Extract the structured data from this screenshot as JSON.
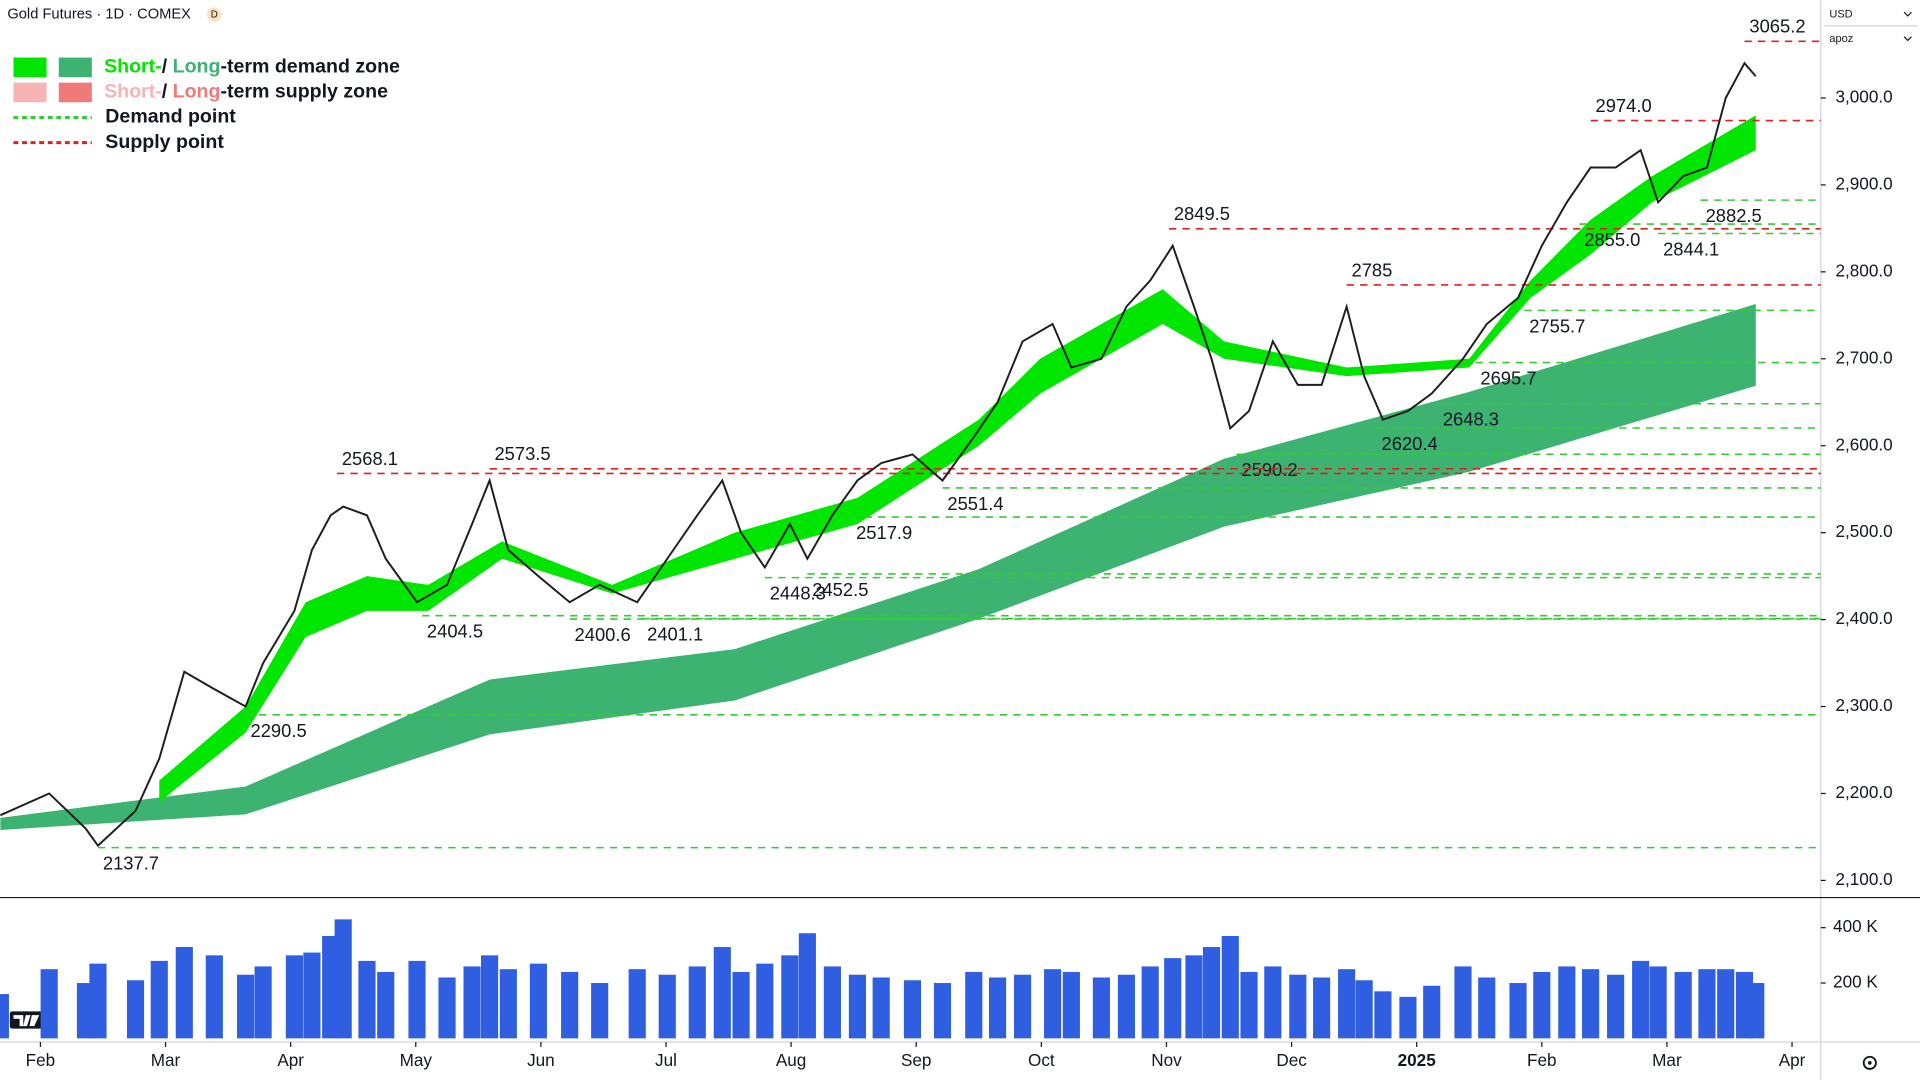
{
  "header": {
    "title": "Gold Futures · 1D · COMEX",
    "badge": "D",
    "currency": "USD",
    "mode": "apoz"
  },
  "chart_data": [
    {
      "type": "line",
      "xlim": [
        0.677,
        15.23
      ],
      "ylim": [
        2081.7,
        3112.7
      ],
      "xticks": [
        {
          "value": 1,
          "label": "Feb"
        },
        {
          "value": 2,
          "label": "Mar"
        },
        {
          "value": 3,
          "label": "Apr"
        },
        {
          "value": 4,
          "label": "May"
        },
        {
          "value": 5,
          "label": "Jun"
        },
        {
          "value": 6,
          "label": "Jul"
        },
        {
          "value": 7,
          "label": "Aug"
        },
        {
          "value": 8,
          "label": "Sep"
        },
        {
          "value": 9,
          "label": "Oct"
        },
        {
          "value": 10,
          "label": "Nov"
        },
        {
          "value": 11,
          "label": "Dec"
        },
        {
          "value": 12,
          "label": "2025"
        },
        {
          "value": 13,
          "label": "Feb"
        },
        {
          "value": 14,
          "label": "Mar"
        },
        {
          "value": 15,
          "label": "Apr"
        }
      ],
      "yticks": [
        {
          "value": 2100,
          "label": "2,100.0"
        },
        {
          "value": 2200,
          "label": "2,200.0"
        },
        {
          "value": 2300,
          "label": "2,300.0"
        },
        {
          "value": 2400,
          "label": "2,400.0"
        },
        {
          "value": 2500,
          "label": "2,500.0"
        },
        {
          "value": 2600,
          "label": "2,600.0"
        },
        {
          "value": 2700,
          "label": "2,700.0"
        },
        {
          "value": 2800,
          "label": "2,800.0"
        },
        {
          "value": 2900,
          "label": "2,900.0"
        },
        {
          "value": 3000,
          "label": "3,000.0"
        }
      ],
      "legend": [
        {
          "parts": [
            "Short-",
            "/ ",
            "Long",
            "-term demand zone"
          ],
          "colors": [
            "#00e600",
            "#3cb371"
          ]
        },
        {
          "parts": [
            "Short-",
            "/ ",
            "Long",
            "-term supply zone"
          ],
          "colors": [
            "#f8b4b4",
            "#f07a7a"
          ]
        },
        {
          "label": "Demand point",
          "color": "#33cc33"
        },
        {
          "label": "Supply point",
          "color": "#e02020"
        }
      ],
      "price": {
        "color": "#1e1e1e",
        "x": [
          0.68,
          1.07,
          1.36,
          1.46,
          1.76,
          1.95,
          2.15,
          2.39,
          2.64,
          2.78,
          3.03,
          3.17,
          3.32,
          3.42,
          3.61,
          3.76,
          4.01,
          4.25,
          4.45,
          4.59,
          4.74,
          4.98,
          5.23,
          5.47,
          5.77,
          6.01,
          6.25,
          6.45,
          6.6,
          6.79,
          6.99,
          7.13,
          7.33,
          7.53,
          7.72,
          7.97,
          8.21,
          8.46,
          8.65,
          8.85,
          9.09,
          9.24,
          9.48,
          9.68,
          9.87,
          10.05,
          10.22,
          10.36,
          10.51,
          10.66,
          10.85,
          11.05,
          11.24,
          11.44,
          11.58,
          11.73,
          11.93,
          12.12,
          12.37,
          12.56,
          12.81,
          13.0,
          13.2,
          13.39,
          13.59,
          13.79,
          13.93,
          14.13,
          14.32,
          14.47,
          14.62,
          14.71
        ],
        "values": [
          2175,
          2200,
          2160,
          2140,
          2180,
          2240,
          2340,
          2320,
          2300,
          2350,
          2410,
          2480,
          2520,
          2530,
          2520,
          2470,
          2420,
          2440,
          2510,
          2560,
          2480,
          2450,
          2420,
          2440,
          2420,
          2470,
          2520,
          2560,
          2500,
          2460,
          2510,
          2470,
          2520,
          2560,
          2580,
          2590,
          2560,
          2610,
          2650,
          2720,
          2740,
          2690,
          2700,
          2760,
          2790,
          2830,
          2760,
          2700,
          2620,
          2640,
          2720,
          2670,
          2670,
          2760,
          2680,
          2630,
          2640,
          2660,
          2700,
          2740,
          2770,
          2830,
          2880,
          2920,
          2920,
          2940,
          2880,
          2910,
          2920,
          3000,
          3040,
          3025
        ]
      },
      "short_zone": {
        "color": "#00e600",
        "x": [
          1.95,
          2.64,
          3.12,
          3.61,
          4.1,
          4.69,
          5.57,
          6.55,
          7.53,
          8.5,
          8.99,
          9.97,
          10.46,
          11.44,
          12.42,
          12.91,
          13.39,
          13.88,
          14.71
        ],
        "lower": [
          2190,
          2270,
          2380,
          2410,
          2410,
          2470,
          2430,
          2470,
          2510,
          2600,
          2660,
          2740,
          2700,
          2680,
          2690,
          2770,
          2820,
          2880,
          2940
        ],
        "upper": [
          2215,
          2300,
          2420,
          2450,
          2440,
          2490,
          2440,
          2500,
          2540,
          2630,
          2700,
          2780,
          2720,
          2690,
          2700,
          2790,
          2860,
          2910,
          2980
        ]
      },
      "long_zone": {
        "color": "#3cb371",
        "x": [
          0.68,
          2.64,
          4.59,
          6.55,
          8.5,
          10.46,
          12.42,
          14.71
        ],
        "lower": [
          2158,
          2176,
          2268,
          2307,
          2401,
          2507,
          2570,
          2669
        ],
        "upper": [
          2172,
          2208,
          2331,
          2366,
          2458,
          2585,
          2662,
          2763
        ]
      },
      "demand_points": {
        "color": "#33cc33",
        "x": [
          1.46,
          2.64,
          4.05,
          5.23,
          5.81,
          6.79,
          7.13,
          7.48,
          8.21,
          10.56,
          11.68,
          12.17,
          12.47,
          12.86,
          13.93,
          13.3,
          14.27
        ],
        "values": [
          2137.7,
          2290.5,
          2404.5,
          2400.6,
          2401.1,
          2448.3,
          2452.5,
          2517.9,
          2551.4,
          2590.2,
          2620.4,
          2648.3,
          2695.7,
          2755.7,
          2844.1,
          2855,
          2882.5
        ],
        "value_labels": [
          "2137.7",
          "2290.5",
          "2404.5",
          "2400.6",
          "2401.1",
          "2448.3",
          "2452.5",
          "2517.9",
          "2551.4",
          "2590.2",
          "2620.4",
          "2648.3",
          "2695.7",
          "2755.7",
          "2844.1",
          "2855.0",
          "2882.5"
        ]
      },
      "supply_points": {
        "color": "#e02020",
        "x": [
          3.37,
          4.59,
          10.02,
          11.44,
          13.39,
          14.62
        ],
        "values": [
          2568.1,
          2573.5,
          2849.5,
          2785,
          2974,
          3065.2
        ],
        "value_labels": [
          "2568.1",
          "2573.5",
          "2849.5",
          "2785",
          "2974.0",
          "3065.2"
        ]
      }
    },
    {
      "type": "bar",
      "color": "#2f5fe0",
      "ylim": [
        0,
        500000
      ],
      "yticks": [
        {
          "value": 200000,
          "label": "200 K"
        },
        {
          "value": 400000,
          "label": "400 K"
        }
      ],
      "x": [
        0.68,
        1.07,
        1.36,
        1.46,
        1.76,
        1.95,
        2.15,
        2.39,
        2.64,
        2.78,
        3.03,
        3.17,
        3.32,
        3.42,
        3.61,
        3.76,
        4.01,
        4.25,
        4.45,
        4.59,
        4.74,
        4.98,
        5.23,
        5.47,
        5.77,
        6.01,
        6.25,
        6.45,
        6.6,
        6.79,
        6.99,
        7.13,
        7.33,
        7.53,
        7.72,
        7.97,
        8.21,
        8.46,
        8.65,
        8.85,
        9.09,
        9.24,
        9.48,
        9.68,
        9.87,
        10.05,
        10.22,
        10.36,
        10.51,
        10.66,
        10.85,
        11.05,
        11.24,
        11.44,
        11.58,
        11.73,
        11.93,
        12.12,
        12.37,
        12.56,
        12.81,
        13.0,
        13.2,
        13.39,
        13.59,
        13.79,
        13.93,
        14.13,
        14.32,
        14.47,
        14.62,
        14.71
      ],
      "values": [
        160000,
        250000,
        200000,
        270000,
        210000,
        280000,
        330000,
        300000,
        230000,
        260000,
        300000,
        310000,
        370000,
        430000,
        280000,
        240000,
        280000,
        220000,
        260000,
        300000,
        250000,
        270000,
        240000,
        200000,
        250000,
        230000,
        260000,
        330000,
        240000,
        270000,
        300000,
        380000,
        260000,
        230000,
        220000,
        210000,
        200000,
        240000,
        220000,
        230000,
        250000,
        240000,
        220000,
        230000,
        260000,
        290000,
        300000,
        330000,
        370000,
        240000,
        260000,
        230000,
        220000,
        250000,
        210000,
        170000,
        150000,
        190000,
        260000,
        220000,
        200000,
        240000,
        260000,
        250000,
        230000,
        280000,
        260000,
        240000,
        250000,
        250000,
        240000,
        200000
      ]
    }
  ]
}
